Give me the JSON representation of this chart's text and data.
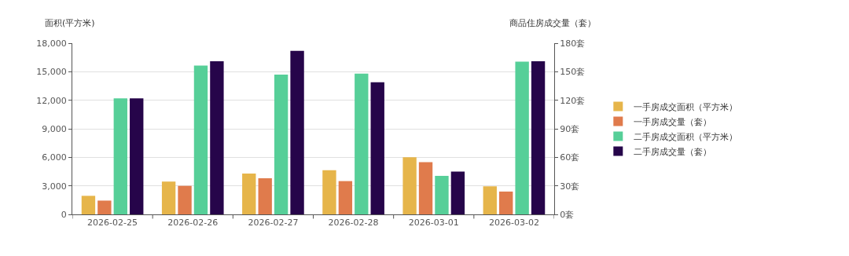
{
  "chart_data": {
    "type": "bar",
    "categories": [
      "2026-02-25",
      "2026-02-26",
      "2026-02-27",
      "2026-02-28",
      "2026-03-01",
      "2026-03-02"
    ],
    "ylabel": "面积(平方米)",
    "y2label": "商品住房成交量（套）",
    "series": [
      {
        "name": "一手房成交面积（平方米）",
        "color": "#e6b54a",
        "values": [
          1950,
          3450,
          4300,
          4650,
          6000,
          2950
        ]
      },
      {
        "name": "一手房成交量（套）",
        "color": "#e07b4c",
        "axis": "y2",
        "values": [
          14.5,
          30,
          38,
          35,
          55,
          24
        ]
      },
      {
        "name": "二手房成交面积（平方米）",
        "color": "#56cf98",
        "values": [
          12200,
          15650,
          14700,
          14800,
          4050,
          16050
        ]
      },
      {
        "name": "二手房成交量（套）",
        "color": "#26054a",
        "axis": "y2",
        "values": [
          122,
          161,
          172,
          139,
          45,
          161
        ]
      }
    ],
    "ylim": [
      0,
      18000
    ],
    "yticks": [
      {
        "value": 0,
        "label": "0"
      },
      {
        "value": 3000,
        "label": "3,000"
      },
      {
        "value": 6000,
        "label": "6,000"
      },
      {
        "value": 9000,
        "label": "9,000"
      },
      {
        "value": 12000,
        "label": "12,000"
      },
      {
        "value": 15000,
        "label": "15,000"
      },
      {
        "value": 18000,
        "label": "18,000"
      }
    ],
    "y2lim": [
      0,
      180
    ],
    "y2ticks": [
      {
        "value": 0,
        "label": "0套"
      },
      {
        "value": 30,
        "label": "30套"
      },
      {
        "value": 60,
        "label": "60套"
      },
      {
        "value": 90,
        "label": "90套"
      },
      {
        "value": 120,
        "label": "120套"
      },
      {
        "value": 150,
        "label": "150套"
      },
      {
        "value": 180,
        "label": "180套"
      }
    ],
    "grid": "y",
    "legend": "right"
  }
}
